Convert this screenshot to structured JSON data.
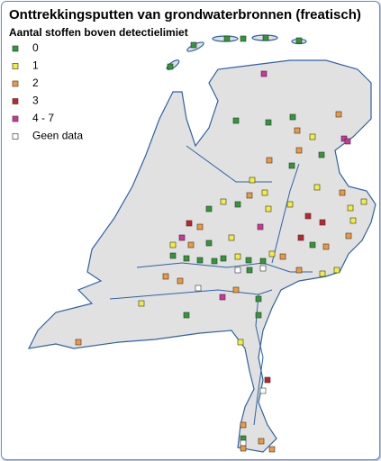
{
  "title": "Onttrekkingsputten van grondwaterbronnen (freatisch)",
  "subtitle": "Aantal stoffen boven detectielimiet",
  "legend": [
    {
      "label": "0",
      "color": "#2e9a35"
    },
    {
      "label": "1",
      "color": "#f2ee3a"
    },
    {
      "label": "2",
      "color": "#ef9a3a"
    },
    {
      "label": "3",
      "color": "#c8202a"
    },
    {
      "label": "4 - 7",
      "color": "#d2339a"
    },
    {
      "label": "Geen data",
      "color": "#ffffff"
    }
  ]
}
